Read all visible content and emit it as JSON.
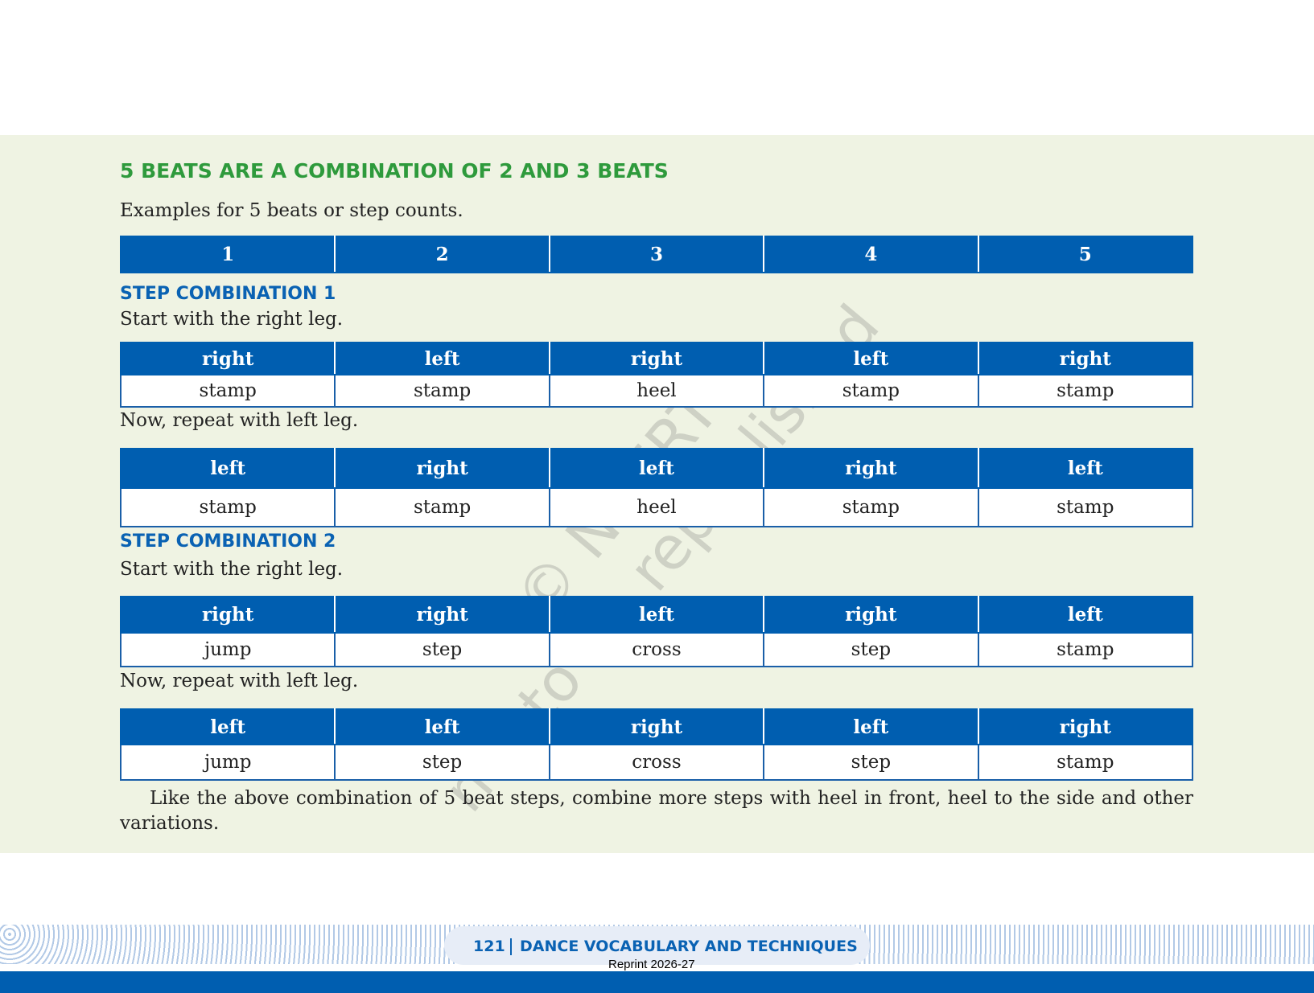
{
  "heading": "5 BEATS ARE A COMBINATION OF 2 AND 3 BEATS",
  "intro": "Examples for 5 beats or step counts.",
  "beats": [
    "1",
    "2",
    "3",
    "4",
    "5"
  ],
  "combinations": [
    {
      "title": "STEP COMBINATION 1",
      "instruction": "Start with the right leg.",
      "first": {
        "legs": [
          "right",
          "left",
          "right",
          "left",
          "right"
        ],
        "steps": [
          "stamp",
          "stamp",
          "heel",
          "stamp",
          "stamp"
        ]
      },
      "repeat": "Now, repeat with left leg.",
      "second": {
        "legs": [
          "left",
          "right",
          "left",
          "right",
          "left"
        ],
        "steps": [
          "stamp",
          "stamp",
          "heel",
          "stamp",
          "stamp"
        ]
      }
    },
    {
      "title": "STEP COMBINATION 2",
      "instruction": "Start with the right leg.",
      "first": {
        "legs": [
          "right",
          "right",
          "left",
          "right",
          "left"
        ],
        "steps": [
          "jump",
          "step",
          "cross",
          "step",
          "stamp"
        ]
      },
      "repeat": "Now, repeat with left leg.",
      "second": {
        "legs": [
          "left",
          "left",
          "right",
          "left",
          "right"
        ],
        "steps": [
          "jump",
          "step",
          "cross",
          "step",
          "stamp"
        ]
      }
    }
  ],
  "closing": "Like the above combination of 5 beat steps, combine more steps with heel in front, heel to the side and other variations.",
  "watermark": [
    "© NCERT",
    "not to be republished"
  ],
  "footer": {
    "page": "121",
    "title": "DANCE VOCABULARY AND TECHNIQUES",
    "reprint": "Reprint 2026-27"
  }
}
